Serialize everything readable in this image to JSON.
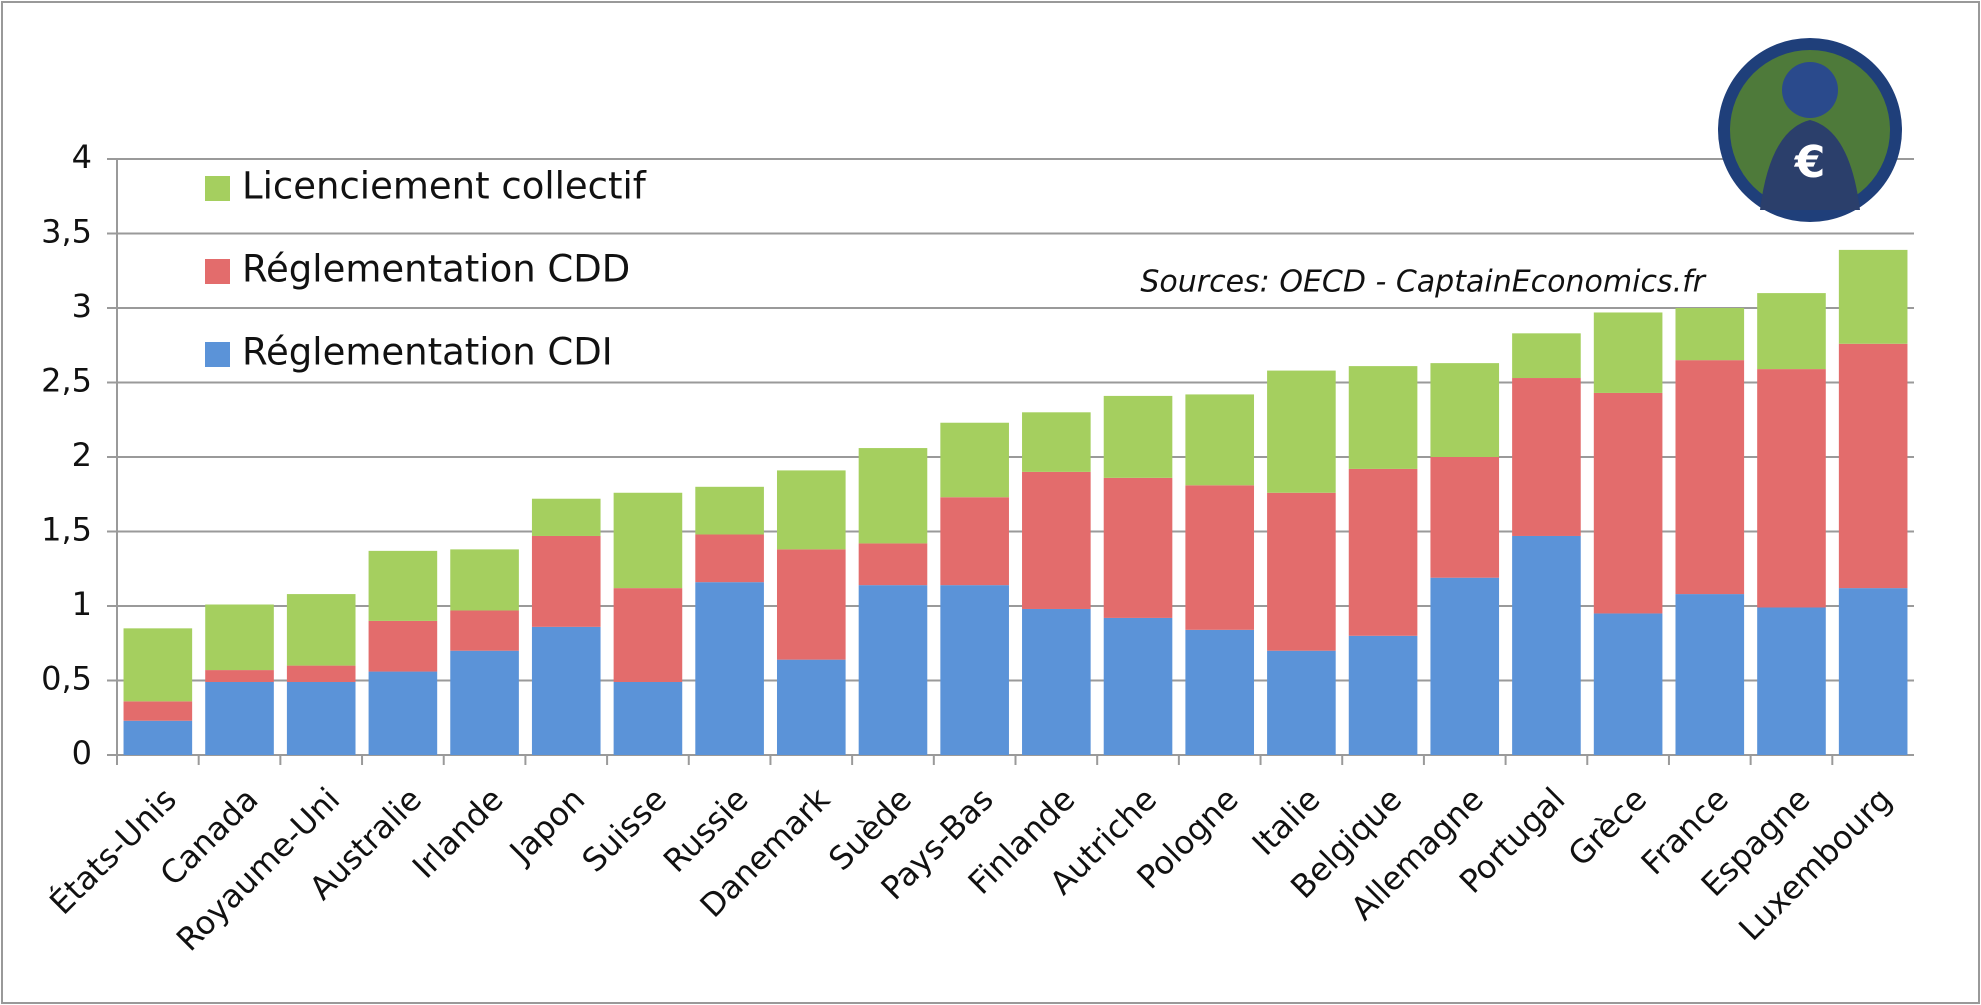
{
  "chart_data": {
    "type": "stacked-bar",
    "source": "Sources: OECD - CaptainEconomics.fr",
    "categories": [
      "États-Unis",
      "Canada",
      "Royaume-Uni",
      "Australie",
      "Irlande",
      "Japon",
      "Suisse",
      "Russie",
      "Danemark",
      "Suède",
      "Pays-Bas",
      "Finlande",
      "Autriche",
      "Pologne",
      "Italie",
      "Belgique",
      "Allemagne",
      "Portugal",
      "Grèce",
      "France",
      "Espagne",
      "Luxembourg"
    ],
    "series": [
      {
        "name": "Réglementation CDI",
        "color": "#5b93d8",
        "values": [
          0.23,
          0.49,
          0.49,
          0.56,
          0.7,
          0.86,
          0.49,
          1.16,
          0.64,
          1.14,
          1.14,
          0.98,
          0.92,
          0.84,
          0.7,
          0.8,
          1.19,
          1.47,
          0.95,
          1.08,
          0.99,
          1.12
        ]
      },
      {
        "name": "Réglementation CDD",
        "color": "#e36c6c",
        "values": [
          0.13,
          0.08,
          0.11,
          0.34,
          0.27,
          0.61,
          0.63,
          0.32,
          0.74,
          0.28,
          0.59,
          0.92,
          0.94,
          0.97,
          1.06,
          1.12,
          0.81,
          1.06,
          1.48,
          1.57,
          1.6,
          1.64
        ]
      },
      {
        "name": "Licenciement collectif",
        "color": "#a5cf5f",
        "values": [
          0.49,
          0.44,
          0.48,
          0.47,
          0.41,
          0.25,
          0.64,
          0.32,
          0.53,
          0.64,
          0.5,
          0.4,
          0.55,
          0.61,
          0.82,
          0.69,
          0.63,
          0.3,
          0.54,
          0.35,
          0.51,
          0.63
        ]
      }
    ],
    "ylim": [
      0,
      4
    ],
    "yticks": [
      0,
      {
        "value": 0.5,
        "label": "0,5"
      },
      1,
      {
        "value": 1.5,
        "label": "1,5"
      },
      2,
      {
        "value": 2.5,
        "label": "2,5"
      },
      3,
      {
        "value": 3.5,
        "label": "3,5"
      },
      4
    ],
    "grid": true,
    "legend": "top-left"
  }
}
